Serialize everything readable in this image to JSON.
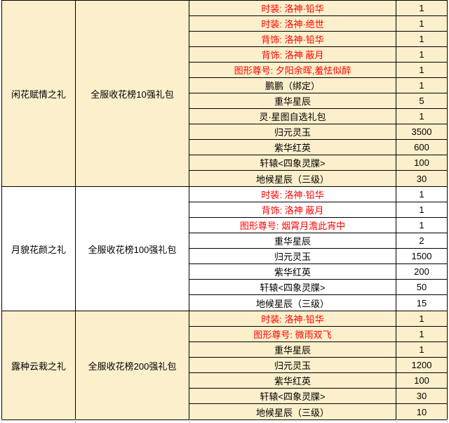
{
  "colors": {
    "row_highlight": "#FCEFCB",
    "row_plain": "#FFFFFF",
    "accent_text": "#FF0000",
    "border": "#000000",
    "gridline_stub": "#C9C9C9"
  },
  "table": {
    "sections": [
      {
        "name": "闲花赋情之礼",
        "package": "全服收花榜10强礼包",
        "highlighted": true,
        "items": [
          {
            "label": "时装: 洛神·铅华",
            "qty": "1",
            "red": true
          },
          {
            "label": "时装: 洛神·绝世",
            "qty": "1",
            "red": true
          },
          {
            "label": "背饰: 洛神·铅华",
            "qty": "1",
            "red": true
          },
          {
            "label": "背饰: 洛神 蔽月",
            "qty": "1",
            "red": true
          },
          {
            "label": "图形尊号: 夕阳余晖,羞怯似醉",
            "qty": "1",
            "red": true
          },
          {
            "label": "鹏鹏（绑定）",
            "qty": "1",
            "red": false
          },
          {
            "label": "重华星辰",
            "qty": "5",
            "red": false
          },
          {
            "label": "灵·星图自选礼包",
            "qty": "1",
            "red": false
          },
          {
            "label": "归元灵玉",
            "qty": "3500",
            "red": false
          },
          {
            "label": "紫华红英",
            "qty": "600",
            "red": false
          },
          {
            "label": "轩辕<四象灵牒>",
            "qty": "100",
            "red": false
          },
          {
            "label": "地候星辰（三级）",
            "qty": "30",
            "red": false
          }
        ]
      },
      {
        "name": "月貌花颜之礼",
        "package": "全服收花榜100强礼包",
        "highlighted": false,
        "items": [
          {
            "label": "时装: 洛神·铅华",
            "qty": "1",
            "red": true
          },
          {
            "label": "背饰: 洛神 蔽月",
            "qty": "1",
            "red": true
          },
          {
            "label": "图形尊号: 烟霄月澹此宵中",
            "qty": "1",
            "red": true
          },
          {
            "label": "重华星辰",
            "qty": "2",
            "red": false
          },
          {
            "label": "归元灵玉",
            "qty": "1500",
            "red": false
          },
          {
            "label": "紫华红英",
            "qty": "200",
            "red": false
          },
          {
            "label": "轩辕<四象灵牒>",
            "qty": "50",
            "red": false
          },
          {
            "label": "地候星辰（三级）",
            "qty": "15",
            "red": false
          }
        ]
      },
      {
        "name": "露种云栽之礼",
        "package": "全服收花榜200强礼包",
        "highlighted": true,
        "items": [
          {
            "label": "时装: 洛神·铅华",
            "qty": "1",
            "red": true
          },
          {
            "label": "图形尊号: 微雨双飞",
            "qty": "1",
            "red": true
          },
          {
            "label": "重华星辰",
            "qty": "1",
            "red": false
          },
          {
            "label": "归元灵玉",
            "qty": "1200",
            "red": false
          },
          {
            "label": "紫华红英",
            "qty": "100",
            "red": false
          },
          {
            "label": "轩辕<四象灵牒>",
            "qty": "30",
            "red": false
          },
          {
            "label": "地候星辰（三级）",
            "qty": "10",
            "red": false
          }
        ]
      }
    ]
  }
}
